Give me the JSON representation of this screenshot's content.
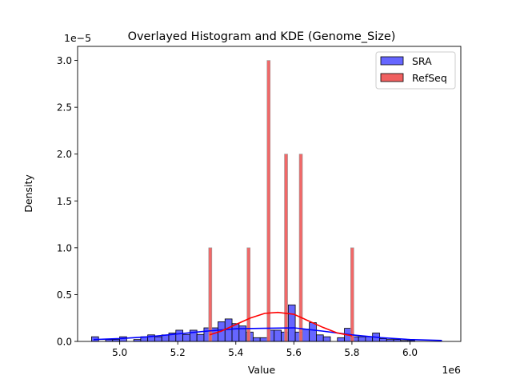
{
  "chart_data": {
    "type": "bar",
    "title": "Overlayed Histogram and KDE (Genome_Size)",
    "xlabel": "Value",
    "ylabel": "Density",
    "x_offset_label": "1e6",
    "y_offset_label": "1e−5",
    "xlim": [
      4.855,
      6.175
    ],
    "ylim": [
      0,
      3.15
    ],
    "x_ticks": [
      "5.0",
      "5.2",
      "5.4",
      "5.6",
      "5.8",
      "6.0"
    ],
    "x_tick_values": [
      5.0,
      5.2,
      5.4,
      5.6,
      5.8,
      6.0
    ],
    "y_ticks": [
      "0.0",
      "0.5",
      "1.0",
      "1.5",
      "2.0",
      "2.5",
      "3.0"
    ],
    "y_tick_values": [
      0,
      0.5,
      1.0,
      1.5,
      2.0,
      2.5,
      3.0
    ],
    "grid": false,
    "legend_position": "top-right",
    "series": [
      {
        "name": "SRA",
        "color": "#0000ff",
        "fill": "#6666ff",
        "bin_start": 4.903,
        "bin_width": 0.0242,
        "values": [
          0.05,
          0,
          0.02,
          0.02,
          0.05,
          0,
          0.02,
          0.05,
          0.07,
          0.05,
          0.07,
          0.09,
          0.12,
          0.075,
          0.12,
          0.075,
          0.145,
          0.145,
          0.21,
          0.24,
          0.19,
          0.165,
          0.1,
          0.04,
          0.04,
          0.12,
          0.12,
          0.1,
          0.39,
          0.1,
          0.13,
          0.2,
          0.07,
          0.05,
          0,
          0.04,
          0.14,
          0.05,
          0.05,
          0.05,
          0.09,
          0.03,
          0.02,
          0.02,
          0.01,
          0.01
        ],
        "kde": {
          "x": [
            4.91,
            5.0,
            5.1,
            5.2,
            5.3,
            5.4,
            5.5,
            5.6,
            5.7,
            5.8,
            5.9,
            6.0,
            6.11
          ],
          "y": [
            0.02,
            0.03,
            0.05,
            0.08,
            0.11,
            0.135,
            0.14,
            0.145,
            0.11,
            0.07,
            0.04,
            0.02,
            0.01
          ]
        }
      },
      {
        "name": "RefSeq",
        "color": "#ff0000",
        "fill": "#f06060",
        "bar_width": 0.011,
        "bars": [
          {
            "x": 5.312,
            "value": 1.0
          },
          {
            "x": 5.444,
            "value": 1.0
          },
          {
            "x": 5.513,
            "value": 3.0
          },
          {
            "x": 5.573,
            "value": 2.0
          },
          {
            "x": 5.624,
            "value": 2.0
          },
          {
            "x": 5.801,
            "value": 1.0
          }
        ],
        "kde": {
          "x": [
            5.31,
            5.35,
            5.4,
            5.45,
            5.5,
            5.545,
            5.6,
            5.65,
            5.7,
            5.75,
            5.8
          ],
          "y": [
            0.07,
            0.11,
            0.18,
            0.25,
            0.3,
            0.31,
            0.29,
            0.22,
            0.15,
            0.09,
            0.06
          ]
        }
      }
    ]
  }
}
